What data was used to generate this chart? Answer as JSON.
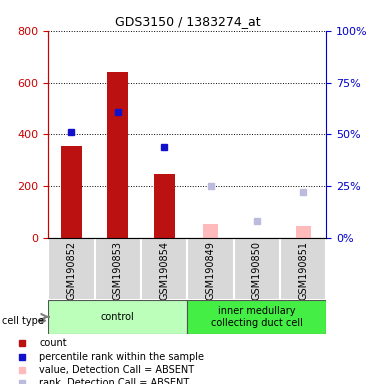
{
  "title": "GDS3150 / 1383274_at",
  "samples": [
    "GSM190852",
    "GSM190853",
    "GSM190854",
    "GSM190849",
    "GSM190850",
    "GSM190851"
  ],
  "count_values": [
    355,
    640,
    248,
    null,
    null,
    null
  ],
  "percentile_values": [
    51,
    61,
    44,
    null,
    null,
    null
  ],
  "absent_value_values": [
    null,
    null,
    null,
    55,
    null,
    45
  ],
  "absent_rank_values": [
    null,
    null,
    null,
    25,
    8,
    22
  ],
  "ylim_left": [
    0,
    800
  ],
  "ylim_right": [
    0,
    100
  ],
  "left_ticks": [
    0,
    200,
    400,
    600,
    800
  ],
  "right_ticks": [
    0,
    25,
    50,
    75,
    100
  ],
  "left_color": "#cc0000",
  "right_color": "#0000cc",
  "count_color": "#bb1111",
  "percentile_color": "#1111cc",
  "absent_value_color": "#ffbbbb",
  "absent_rank_color": "#bbbbdd",
  "group1_color": "#aaffaa",
  "group2_color": "#44ee44",
  "legend_items": [
    {
      "label": "count",
      "color": "#bb1111"
    },
    {
      "label": "percentile rank within the sample",
      "color": "#1111cc"
    },
    {
      "label": "value, Detection Call = ABSENT",
      "color": "#ffbbbb"
    },
    {
      "label": "rank, Detection Call = ABSENT",
      "color": "#bbbbdd"
    }
  ]
}
